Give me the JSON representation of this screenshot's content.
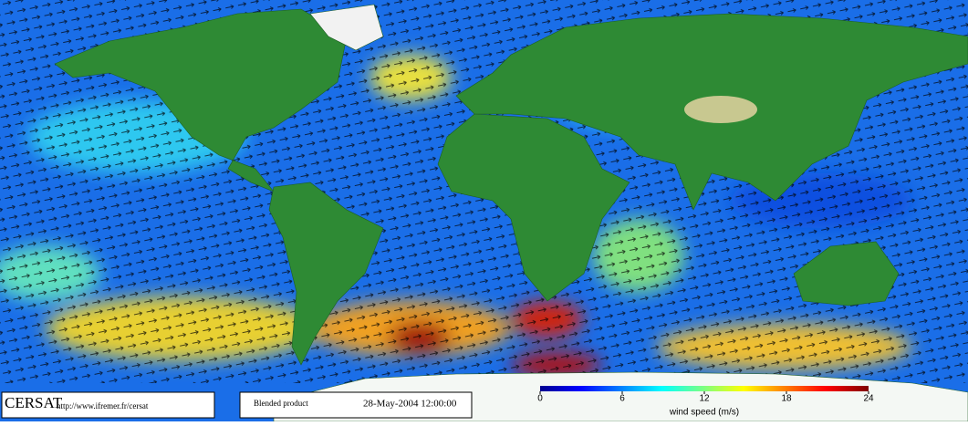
{
  "logo": "CERSAT",
  "url": "http://www.ifremer.fr/cersat",
  "product": "Blended product",
  "date": "28-May-2004 12:00:00",
  "colorbar": {
    "label": "wind speed (m/s)",
    "lim": [
      0,
      24
    ],
    "ticks": [
      0,
      6,
      12,
      18,
      24
    ]
  }
}
